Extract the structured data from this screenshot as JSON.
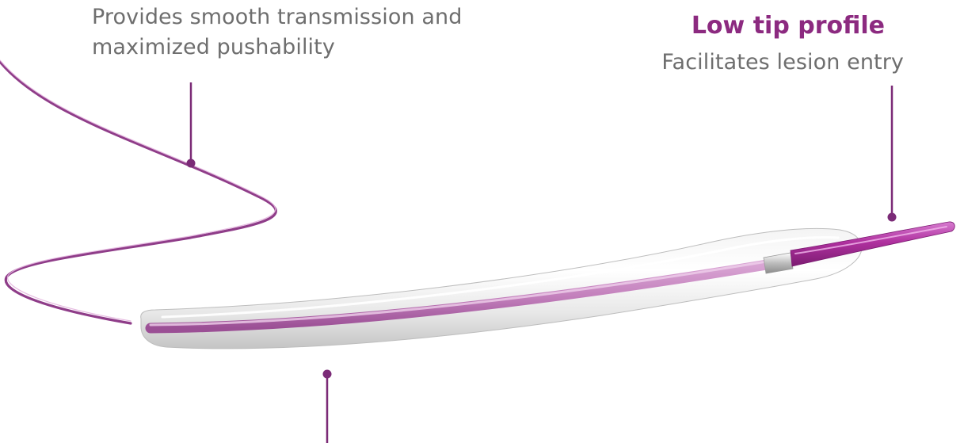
{
  "captions": {
    "shaft": {
      "lines": [
        "Provides smooth transmission and",
        "maximized pushability"
      ]
    },
    "tip": {
      "heading": "Low tip profile",
      "body": "Facilitates lesion entry"
    }
  },
  "colors": {
    "accent": "#8c2a80",
    "pointer": "#7b2b77",
    "marker": "#c04bb8",
    "marker_light": "#dd9ad6",
    "caption_text": "#6e6e6e",
    "balloon_highlight": "#ffffff",
    "balloon_shadow": "#c9c9c9"
  }
}
